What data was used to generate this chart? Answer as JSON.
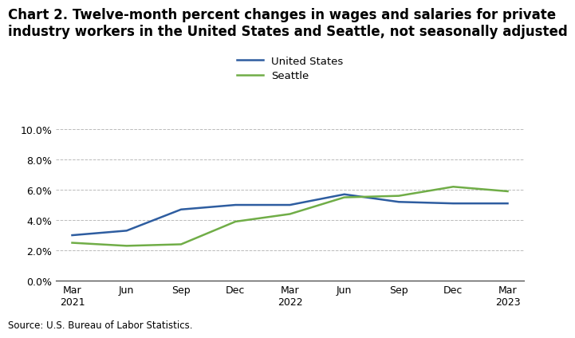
{
  "title": "Chart 2. Twelve-month percent changes in wages and salaries for private\nindustry workers in the United States and Seattle, not seasonally adjusted",
  "title_fontsize": 12,
  "source": "Source: U.S. Bureau of Labor Statistics.",
  "x_labels": [
    "Mar\n2021",
    "Jun",
    "Sep",
    "Dec",
    "Mar\n2022",
    "Jun",
    "Sep",
    "Dec",
    "Mar\n2023"
  ],
  "us_values": [
    3.0,
    3.3,
    4.7,
    5.0,
    5.0,
    5.7,
    5.2,
    5.1,
    5.1
  ],
  "seattle_values": [
    2.5,
    2.3,
    2.4,
    3.9,
    4.4,
    5.5,
    5.6,
    6.2,
    5.9
  ],
  "us_color": "#2e5da0",
  "seattle_color": "#70ad47",
  "ylim": [
    0.0,
    10.0
  ],
  "yticks": [
    0.0,
    2.0,
    4.0,
    6.0,
    8.0,
    10.0
  ],
  "legend_labels": [
    "United States",
    "Seattle"
  ],
  "line_width": 1.8,
  "background_color": "#ffffff",
  "grid_color": "#aaaaaa"
}
